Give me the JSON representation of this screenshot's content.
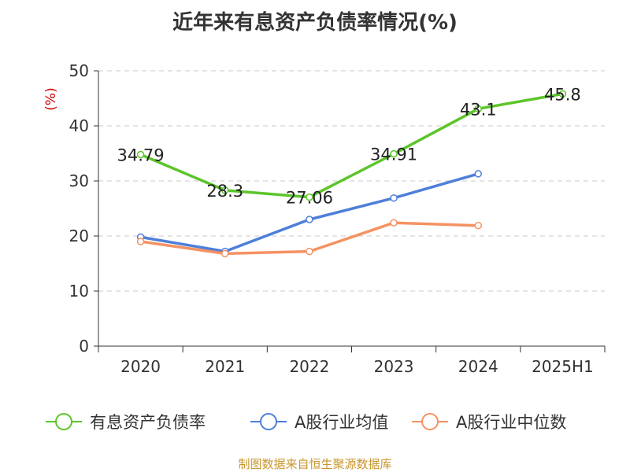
{
  "chart_data": {
    "type": "line",
    "title": "近年来有息资产负债率情况(%)",
    "ylabel": "(%)",
    "xlabel": "",
    "ylim": [
      0,
      50
    ],
    "yticks": [
      0,
      10,
      20,
      30,
      40,
      50
    ],
    "grid": true,
    "legend_position": "bottom",
    "categories": [
      "2020",
      "2021",
      "2022",
      "2023",
      "2024",
      "2025H1"
    ],
    "series": [
      {
        "name": "有息资产负债率",
        "color": "#5cc52a",
        "values": [
          34.79,
          28.3,
          27.06,
          34.91,
          43.1,
          45.8
        ],
        "labels": [
          "34.79",
          "28.3",
          "27.06",
          "34.91",
          "43.1",
          "45.8"
        ]
      },
      {
        "name": "A股行业均值",
        "color": "#4e7fd9",
        "values": [
          19.8,
          17.2,
          23.0,
          26.9,
          31.3,
          null
        ]
      },
      {
        "name": "A股行业中位数",
        "color": "#f59262",
        "values": [
          19.0,
          16.8,
          17.2,
          22.4,
          21.9,
          null
        ]
      }
    ]
  },
  "footer": {
    "source": "制图数据来自恒生聚源数据库"
  }
}
